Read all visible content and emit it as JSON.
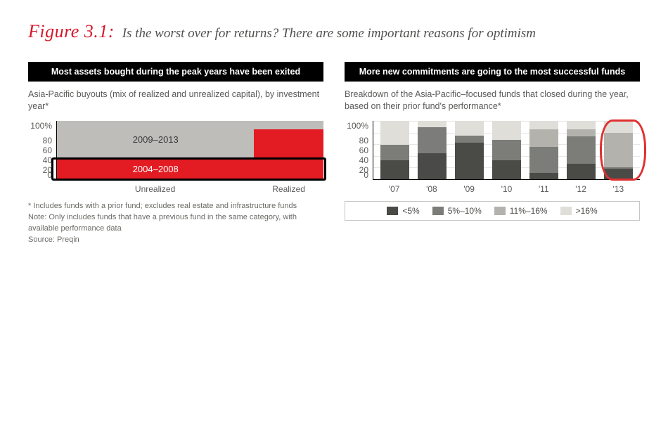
{
  "figure": {
    "number_label": "Figure 3.1:",
    "title": "Is the worst over for returns? There are some important reasons for optimism",
    "title_color": "#514f4d",
    "number_color": "#d6172b"
  },
  "footnotes": {
    "star": "* Includes funds with a prior fund; excludes real estate and infrastructure funds",
    "note": "Note: Only includes funds that have a previous fund in the same category, with available performance data",
    "source": "Source: Preqin"
  },
  "left_panel": {
    "header": "Most assets bought during the peak years have been exited",
    "sub": "Asia-Pacific buyouts (mix of realized and unrealized capital), by investment year*",
    "type": "mosaic-stacked",
    "y_ticks": [
      "100%",
      "80",
      "60",
      "40",
      "20",
      "0"
    ],
    "grid_color": "#e9e7e4",
    "categories": [
      {
        "label": "Unrealized",
        "width_pct": 74
      },
      {
        "label": "Realized",
        "width_pct": 26
      }
    ],
    "series": [
      {
        "name": "2004–2008",
        "color": "#e31b23",
        "values_pct": [
          35,
          86
        ]
      },
      {
        "name": "2009–2013",
        "color": "#bfbdb9",
        "values_pct": [
          65,
          14
        ]
      }
    ],
    "series_label_positions": {
      "2009–2013": {
        "col": 0,
        "in": "top"
      },
      "2004–2008": {
        "col": 0,
        "in": "bottom"
      }
    },
    "highlight_box": {
      "color": "#000000",
      "around": "bottom-row",
      "left_pct": -2,
      "right_pct": 101,
      "top_pct": 63,
      "bottom_pct": 102
    }
  },
  "right_panel": {
    "header": "More new commitments are going to the most successful funds",
    "sub": "Breakdown of the Asia-Pacific–focused funds that closed during the year, based on their prior fund's performance*",
    "type": "stacked-bar-100",
    "y_ticks": [
      "100%",
      "80",
      "60",
      "40",
      "20",
      "0"
    ],
    "grid_color": "#e9e7e4",
    "categories": [
      "'07",
      "'08",
      "'09",
      "'10",
      "'11",
      "'12",
      "'13"
    ],
    "series": [
      {
        "name": "<5%",
        "color": "#4a4a47"
      },
      {
        "name": "5%–10%",
        "color": "#7c7c78"
      },
      {
        "name": "11%–16%",
        "color": "#b4b2ad"
      },
      {
        "name": ">16%",
        "color": "#e0ded9"
      }
    ],
    "stacks_pct": [
      [
        33,
        26,
        0,
        41
      ],
      [
        45,
        44,
        0,
        11
      ],
      [
        63,
        12,
        0,
        25
      ],
      [
        33,
        34,
        0,
        33
      ],
      [
        11,
        45,
        30,
        14
      ],
      [
        27,
        46,
        13,
        14
      ],
      [
        18,
        2,
        60,
        20
      ]
    ],
    "highlight": {
      "color": "#e03030",
      "category_index": 6
    }
  }
}
